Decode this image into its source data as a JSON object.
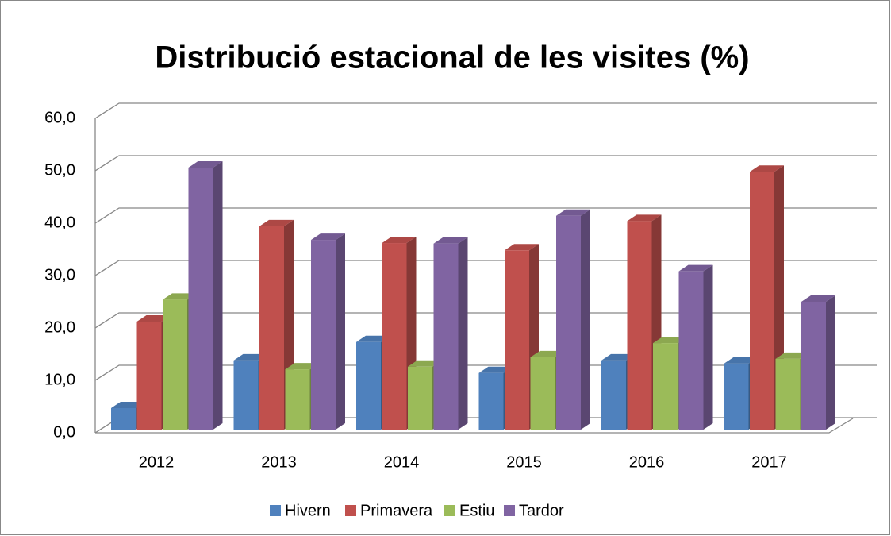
{
  "chart_data": {
    "type": "bar3d",
    "title": "Distribució estacional de les visites (%)",
    "categories": [
      "2012",
      "2013",
      "2014",
      "2015",
      "2016",
      "2017"
    ],
    "series": [
      {
        "name": "Hivern",
        "color": "#4f81bd",
        "values": [
          4.1,
          13.2,
          16.7,
          10.8,
          13.2,
          12.6
        ]
      },
      {
        "name": "Primavera",
        "color": "#c0504d",
        "values": [
          20.6,
          38.8,
          35.6,
          34.2,
          39.8,
          49.2
        ]
      },
      {
        "name": "Estiu",
        "color": "#9bbb59",
        "values": [
          24.8,
          11.5,
          12.0,
          13.8,
          16.5,
          13.5
        ]
      },
      {
        "name": "Tardor",
        "color": "#8064a2",
        "values": [
          50.0,
          36.2,
          35.5,
          40.8,
          30.2,
          24.4
        ]
      }
    ],
    "ylim": [
      0,
      60
    ],
    "yticks": [
      {
        "value": 0,
        "label": "0,0"
      },
      {
        "value": 10,
        "label": "10,0"
      },
      {
        "value": 20,
        "label": "20,0"
      },
      {
        "value": 30,
        "label": "30,0"
      },
      {
        "value": 40,
        "label": "40,0"
      },
      {
        "value": 50,
        "label": "50,0"
      },
      {
        "value": 60,
        "label": "60,0"
      }
    ],
    "grid": true,
    "legend": "bottom"
  }
}
